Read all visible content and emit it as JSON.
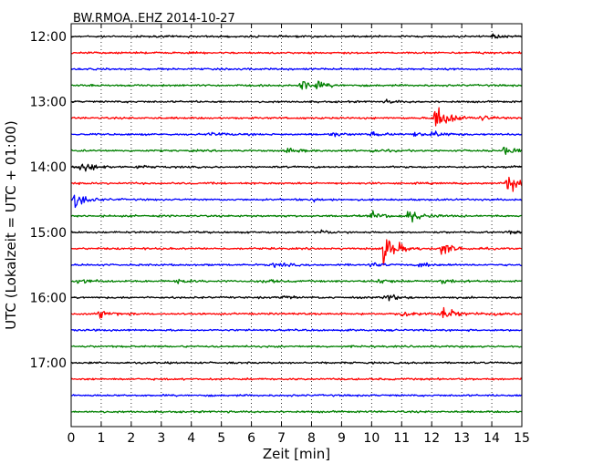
{
  "chart_data": {
    "type": "line",
    "title": "BW.RMOA..EHZ 2014-10-27",
    "xlabel": "Zeit  [min]",
    "ylabel": "UTC (Lokalzeit = UTC + 01:00)",
    "xlim": [
      0,
      15
    ],
    "x_ticks": [
      "0",
      "1",
      "2",
      "3",
      "4",
      "5",
      "6",
      "7",
      "8",
      "9",
      "10",
      "11",
      "12",
      "13",
      "14",
      "15"
    ],
    "y_ticks": [
      "12:00",
      "13:00",
      "14:00",
      "15:00",
      "16:00",
      "17:00"
    ],
    "grid": "vertical dotted",
    "trace_minutes": 15,
    "trace_colors_cycle": [
      "#000000",
      "#ff0000",
      "#0000ff",
      "#008000"
    ],
    "traces": [
      {
        "start": "12:00",
        "events": [
          {
            "t": 14.0,
            "amp": 0.25
          }
        ]
      },
      {
        "start": "12:15",
        "events": [
          {
            "t": 13.5,
            "amp": 0.1
          }
        ]
      },
      {
        "start": "12:30",
        "events": []
      },
      {
        "start": "12:45",
        "events": [
          {
            "t": 7.6,
            "amp": 0.8
          },
          {
            "t": 8.1,
            "amp": 0.35
          }
        ]
      },
      {
        "start": "13:00",
        "events": [
          {
            "t": 10.5,
            "amp": 0.2
          }
        ]
      },
      {
        "start": "13:15",
        "events": [
          {
            "t": 12.1,
            "amp": 2.4
          },
          {
            "t": 13.6,
            "amp": 0.35
          }
        ]
      },
      {
        "start": "13:30",
        "events": [
          {
            "t": 4.6,
            "amp": 0.3
          },
          {
            "t": 8.6,
            "amp": 0.3
          },
          {
            "t": 10.0,
            "amp": 0.25
          },
          {
            "t": 11.4,
            "amp": 0.3
          },
          {
            "t": 12.0,
            "amp": 0.35
          }
        ]
      },
      {
        "start": "13:45",
        "events": [
          {
            "t": 7.2,
            "amp": 0.3
          },
          {
            "t": 10.0,
            "amp": 0.2
          },
          {
            "t": 14.4,
            "amp": 0.5
          }
        ]
      },
      {
        "start": "14:00",
        "events": [
          {
            "t": 0.3,
            "amp": 0.9
          },
          {
            "t": 2.2,
            "amp": 0.2
          },
          {
            "t": 14.5,
            "amp": 0.2
          }
        ]
      },
      {
        "start": "14:15",
        "events": [
          {
            "t": 14.5,
            "amp": 1.6
          }
        ]
      },
      {
        "start": "14:30",
        "events": [
          {
            "t": 0.1,
            "amp": 1.1
          },
          {
            "t": 8.0,
            "amp": 0.2
          }
        ]
      },
      {
        "start": "14:45",
        "events": [
          {
            "t": 10.0,
            "amp": 0.5
          },
          {
            "t": 11.2,
            "amp": 1.0
          }
        ]
      },
      {
        "start": "15:00",
        "events": [
          {
            "t": 8.3,
            "amp": 0.2
          },
          {
            "t": 14.5,
            "amp": 0.15
          }
        ]
      },
      {
        "start": "15:15",
        "events": [
          {
            "t": 10.4,
            "amp": 2.2
          },
          {
            "t": 12.3,
            "amp": 0.9
          }
        ]
      },
      {
        "start": "15:30",
        "events": [
          {
            "t": 6.7,
            "amp": 0.35
          },
          {
            "t": 9.9,
            "amp": 0.3
          },
          {
            "t": 11.6,
            "amp": 0.3
          }
        ]
      },
      {
        "start": "15:45",
        "events": [
          {
            "t": 0.2,
            "amp": 0.4
          },
          {
            "t": 3.5,
            "amp": 0.25
          },
          {
            "t": 6.3,
            "amp": 0.3
          },
          {
            "t": 10.2,
            "amp": 0.35
          },
          {
            "t": 12.3,
            "amp": 0.35
          }
        ]
      },
      {
        "start": "16:00",
        "events": [
          {
            "t": 7.0,
            "amp": 0.2
          },
          {
            "t": 10.4,
            "amp": 0.5
          }
        ]
      },
      {
        "start": "16:15",
        "events": [
          {
            "t": 0.9,
            "amp": 0.5
          },
          {
            "t": 11.0,
            "amp": 0.55
          },
          {
            "t": 12.3,
            "amp": 1.0
          },
          {
            "t": 14.1,
            "amp": 0.3
          }
        ]
      },
      {
        "start": "16:30",
        "events": []
      },
      {
        "start": "16:45",
        "events": []
      },
      {
        "start": "17:00",
        "events": []
      },
      {
        "start": "17:15",
        "events": []
      },
      {
        "start": "17:30",
        "events": []
      },
      {
        "start": "17:45",
        "events": []
      }
    ]
  }
}
